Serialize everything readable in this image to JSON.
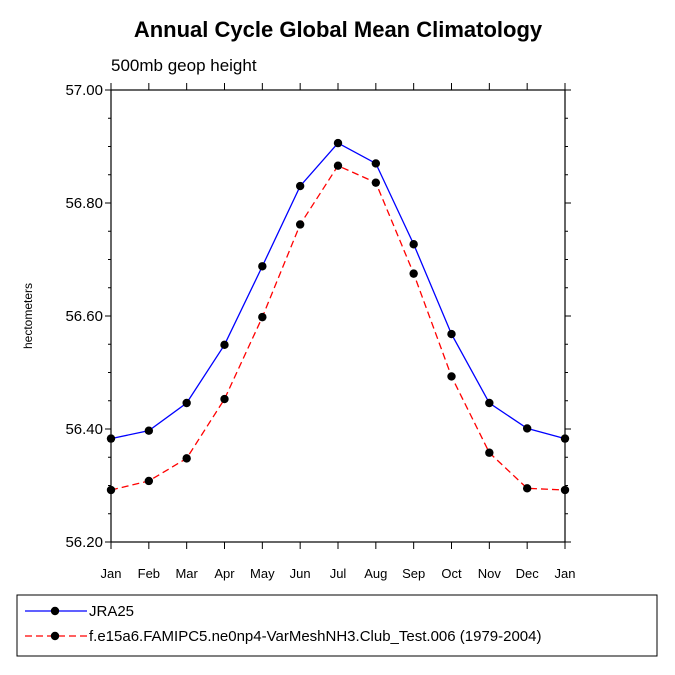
{
  "chart_data": {
    "type": "line",
    "title": "Annual Cycle Global Mean Climatology",
    "subtitle": "500mb geop height",
    "xlabel": "",
    "ylabel": "hectometers",
    "categories": [
      "Jan",
      "Feb",
      "Mar",
      "Apr",
      "May",
      "Jun",
      "Jul",
      "Aug",
      "Sep",
      "Oct",
      "Nov",
      "Dec",
      "Jan"
    ],
    "ylim": [
      56.2,
      57.0
    ],
    "yticks": [
      56.2,
      56.4,
      56.6,
      56.8,
      57.0
    ],
    "ytick_labels": [
      "56.20",
      "56.40",
      "56.60",
      "56.80",
      "57.00"
    ],
    "grid": false,
    "legend_position": "bottom",
    "series": [
      {
        "name": "JRA25",
        "color": "#0000ff",
        "dash": "solid",
        "values": [
          56.383,
          56.397,
          56.446,
          56.549,
          56.688,
          56.83,
          56.906,
          56.87,
          56.727,
          56.568,
          56.446,
          56.401,
          56.383
        ]
      },
      {
        "name": "f.e15a6.FAMIPC5.ne0np4-VarMeshNH3.Club_Test.006 (1979-2004)",
        "color": "#ff0000",
        "dash": "dashed",
        "values": [
          56.292,
          56.308,
          56.348,
          56.453,
          56.598,
          56.762,
          56.866,
          56.836,
          56.675,
          56.493,
          56.358,
          56.295,
          56.292
        ]
      }
    ]
  }
}
